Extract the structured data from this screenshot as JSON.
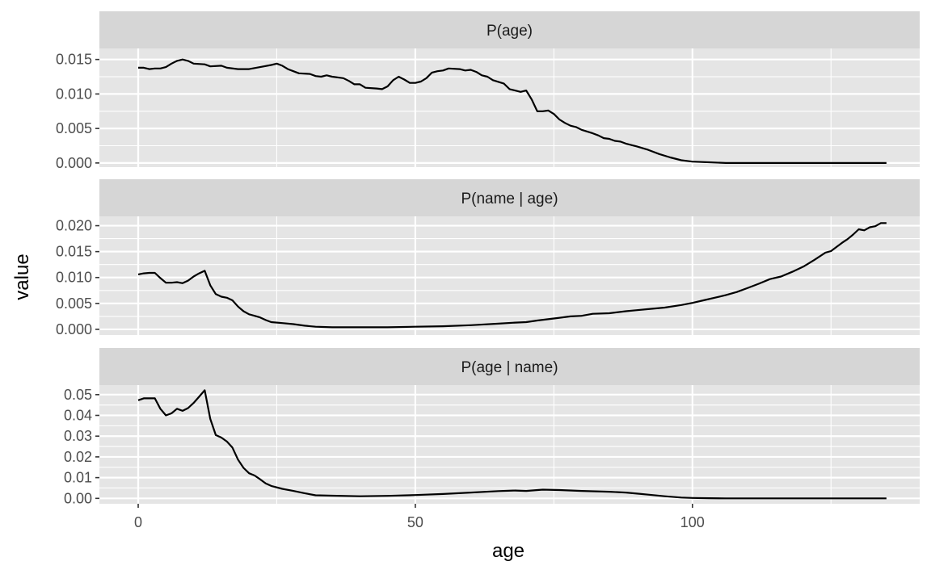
{
  "chart_data": {
    "type": "line",
    "facet": "stacked panels, shared x axis, free y scales",
    "xlabel": "age",
    "ylabel": "value",
    "xlim": [
      -7,
      141
    ],
    "x_ticks": [
      0,
      50,
      100
    ],
    "x_tick_labels": [
      "0",
      "50",
      "100"
    ],
    "grid": true,
    "panels": [
      {
        "title": "P(age)",
        "ylim": [
          -0.0006,
          0.0166
        ],
        "y_ticks": [
          0.0,
          0.005,
          0.01,
          0.015
        ],
        "y_tick_labels": [
          "0.000",
          "0.005",
          "0.010",
          "0.015"
        ],
        "points": [
          [
            0,
            0.0138
          ],
          [
            1,
            0.0138
          ],
          [
            2,
            0.0136
          ],
          [
            3,
            0.0137
          ],
          [
            4,
            0.0137
          ],
          [
            5,
            0.0139
          ],
          [
            6,
            0.0144
          ],
          [
            7,
            0.0148
          ],
          [
            8,
            0.015
          ],
          [
            9,
            0.0148
          ],
          [
            10,
            0.0144
          ],
          [
            12,
            0.0143
          ],
          [
            13,
            0.014
          ],
          [
            15,
            0.0141
          ],
          [
            16,
            0.0138
          ],
          [
            18,
            0.0136
          ],
          [
            20,
            0.0136
          ],
          [
            22,
            0.0139
          ],
          [
            24,
            0.0142
          ],
          [
            25,
            0.0144
          ],
          [
            26,
            0.0141
          ],
          [
            27,
            0.0136
          ],
          [
            28,
            0.0133
          ],
          [
            29,
            0.013
          ],
          [
            31,
            0.0129
          ],
          [
            32,
            0.0126
          ],
          [
            33,
            0.0125
          ],
          [
            34,
            0.0127
          ],
          [
            35,
            0.0125
          ],
          [
            37,
            0.0123
          ],
          [
            38,
            0.0119
          ],
          [
            39,
            0.0114
          ],
          [
            40,
            0.0114
          ],
          [
            41,
            0.0109
          ],
          [
            43,
            0.0108
          ],
          [
            44,
            0.0107
          ],
          [
            45,
            0.0111
          ],
          [
            46,
            0.012
          ],
          [
            47,
            0.0125
          ],
          [
            48,
            0.0121
          ],
          [
            49,
            0.0116
          ],
          [
            50,
            0.0116
          ],
          [
            51,
            0.0118
          ],
          [
            52,
            0.0123
          ],
          [
            53,
            0.0131
          ],
          [
            54,
            0.0133
          ],
          [
            55,
            0.0134
          ],
          [
            56,
            0.0137
          ],
          [
            58,
            0.0136
          ],
          [
            59,
            0.0134
          ],
          [
            60,
            0.0135
          ],
          [
            61,
            0.0132
          ],
          [
            62,
            0.0127
          ],
          [
            63,
            0.0125
          ],
          [
            64,
            0.012
          ],
          [
            66,
            0.0115
          ],
          [
            67,
            0.0107
          ],
          [
            69,
            0.0103
          ],
          [
            70,
            0.0105
          ],
          [
            71,
            0.0092
          ],
          [
            72,
            0.0075
          ],
          [
            73,
            0.0075
          ],
          [
            74,
            0.0076
          ],
          [
            75,
            0.0071
          ],
          [
            76,
            0.0063
          ],
          [
            77,
            0.0058
          ],
          [
            78,
            0.0054
          ],
          [
            79,
            0.0052
          ],
          [
            80,
            0.0048
          ],
          [
            82,
            0.0043
          ],
          [
            83,
            0.004
          ],
          [
            84,
            0.0036
          ],
          [
            85,
            0.0035
          ],
          [
            86,
            0.0032
          ],
          [
            87,
            0.0031
          ],
          [
            88,
            0.0028
          ],
          [
            90,
            0.0024
          ],
          [
            92,
            0.0019
          ],
          [
            94,
            0.0013
          ],
          [
            96,
            0.0008
          ],
          [
            98,
            0.0004
          ],
          [
            100,
            0.0002
          ],
          [
            103,
            0.0001
          ],
          [
            106,
            0.0
          ],
          [
            110,
            0.0
          ],
          [
            120,
            0.0
          ],
          [
            130,
            0.0
          ],
          [
            135,
            0.0
          ]
        ]
      },
      {
        "title": "P(name | age)",
        "ylim": [
          -0.0011,
          0.0218
        ],
        "y_ticks": [
          0.0,
          0.005,
          0.01,
          0.015,
          0.02
        ],
        "y_tick_labels": [
          "0.000",
          "0.005",
          "0.010",
          "0.015",
          "0.020"
        ],
        "points": [
          [
            0,
            0.0106
          ],
          [
            1,
            0.0108
          ],
          [
            2,
            0.0109
          ],
          [
            3,
            0.0109
          ],
          [
            4,
            0.0099
          ],
          [
            5,
            0.009
          ],
          [
            6,
            0.009
          ],
          [
            7,
            0.0091
          ],
          [
            8,
            0.0089
          ],
          [
            9,
            0.0094
          ],
          [
            10,
            0.0102
          ],
          [
            11,
            0.0108
          ],
          [
            12,
            0.0113
          ],
          [
            13,
            0.0085
          ],
          [
            14,
            0.0068
          ],
          [
            15,
            0.0063
          ],
          [
            16,
            0.0061
          ],
          [
            17,
            0.0056
          ],
          [
            18,
            0.0044
          ],
          [
            19,
            0.0035
          ],
          [
            20,
            0.0029
          ],
          [
            21,
            0.0026
          ],
          [
            22,
            0.0023
          ],
          [
            23,
            0.0018
          ],
          [
            24,
            0.0014
          ],
          [
            26,
            0.0012
          ],
          [
            28,
            0.001
          ],
          [
            30,
            0.0007
          ],
          [
            32,
            0.0005
          ],
          [
            35,
            0.0004
          ],
          [
            40,
            0.0004
          ],
          [
            45,
            0.0004
          ],
          [
            50,
            0.0005
          ],
          [
            55,
            0.0006
          ],
          [
            60,
            0.0008
          ],
          [
            65,
            0.0011
          ],
          [
            68,
            0.0013
          ],
          [
            70,
            0.0014
          ],
          [
            72,
            0.0017
          ],
          [
            75,
            0.0021
          ],
          [
            78,
            0.0025
          ],
          [
            80,
            0.0026
          ],
          [
            82,
            0.003
          ],
          [
            85,
            0.0031
          ],
          [
            88,
            0.0035
          ],
          [
            90,
            0.0037
          ],
          [
            92,
            0.0039
          ],
          [
            95,
            0.0042
          ],
          [
            98,
            0.0047
          ],
          [
            100,
            0.0051
          ],
          [
            102,
            0.0056
          ],
          [
            104,
            0.0061
          ],
          [
            106,
            0.0066
          ],
          [
            108,
            0.0072
          ],
          [
            110,
            0.008
          ],
          [
            112,
            0.0088
          ],
          [
            114,
            0.0097
          ],
          [
            116,
            0.0102
          ],
          [
            118,
            0.0111
          ],
          [
            120,
            0.0121
          ],
          [
            122,
            0.0134
          ],
          [
            124,
            0.0148
          ],
          [
            125,
            0.0151
          ],
          [
            126,
            0.0159
          ],
          [
            127,
            0.0167
          ],
          [
            128,
            0.0174
          ],
          [
            129,
            0.0183
          ],
          [
            130,
            0.0193
          ],
          [
            131,
            0.0191
          ],
          [
            132,
            0.0197
          ],
          [
            133,
            0.0199
          ],
          [
            134,
            0.0205
          ],
          [
            135,
            0.0205
          ]
        ]
      },
      {
        "title": "P(age | name)",
        "ylim": [
          -0.0026,
          0.0546
        ],
        "y_ticks": [
          0.0,
          0.01,
          0.02,
          0.03,
          0.04,
          0.05
        ],
        "y_tick_labels": [
          "0.00",
          "0.01",
          "0.02",
          "0.03",
          "0.04",
          "0.05"
        ],
        "points": [
          [
            0,
            0.0473
          ],
          [
            1,
            0.0482
          ],
          [
            2,
            0.0482
          ],
          [
            3,
            0.0482
          ],
          [
            4,
            0.0432
          ],
          [
            5,
            0.04
          ],
          [
            6,
            0.041
          ],
          [
            7,
            0.0432
          ],
          [
            8,
            0.0422
          ],
          [
            9,
            0.0435
          ],
          [
            10,
            0.046
          ],
          [
            11,
            0.049
          ],
          [
            12,
            0.0521
          ],
          [
            13,
            0.0383
          ],
          [
            14,
            0.0305
          ],
          [
            15,
            0.0293
          ],
          [
            16,
            0.0274
          ],
          [
            17,
            0.0245
          ],
          [
            18,
            0.0187
          ],
          [
            19,
            0.0147
          ],
          [
            20,
            0.0121
          ],
          [
            21,
            0.011
          ],
          [
            22,
            0.0092
          ],
          [
            23,
            0.0072
          ],
          [
            24,
            0.006
          ],
          [
            26,
            0.0046
          ],
          [
            28,
            0.0036
          ],
          [
            30,
            0.0025
          ],
          [
            32,
            0.0015
          ],
          [
            35,
            0.0013
          ],
          [
            40,
            0.001
          ],
          [
            45,
            0.0012
          ],
          [
            50,
            0.0016
          ],
          [
            55,
            0.0021
          ],
          [
            60,
            0.0028
          ],
          [
            65,
            0.0035
          ],
          [
            68,
            0.0038
          ],
          [
            70,
            0.0036
          ],
          [
            73,
            0.0042
          ],
          [
            76,
            0.004
          ],
          [
            80,
            0.0036
          ],
          [
            85,
            0.0032
          ],
          [
            88,
            0.0028
          ],
          [
            90,
            0.0023
          ],
          [
            92,
            0.0018
          ],
          [
            95,
            0.001
          ],
          [
            98,
            0.0004
          ],
          [
            100,
            0.0002
          ],
          [
            103,
            0.0001
          ],
          [
            106,
            0.0
          ],
          [
            110,
            0.0
          ],
          [
            120,
            0.0
          ],
          [
            130,
            0.0
          ],
          [
            135,
            0.0
          ]
        ]
      }
    ]
  }
}
